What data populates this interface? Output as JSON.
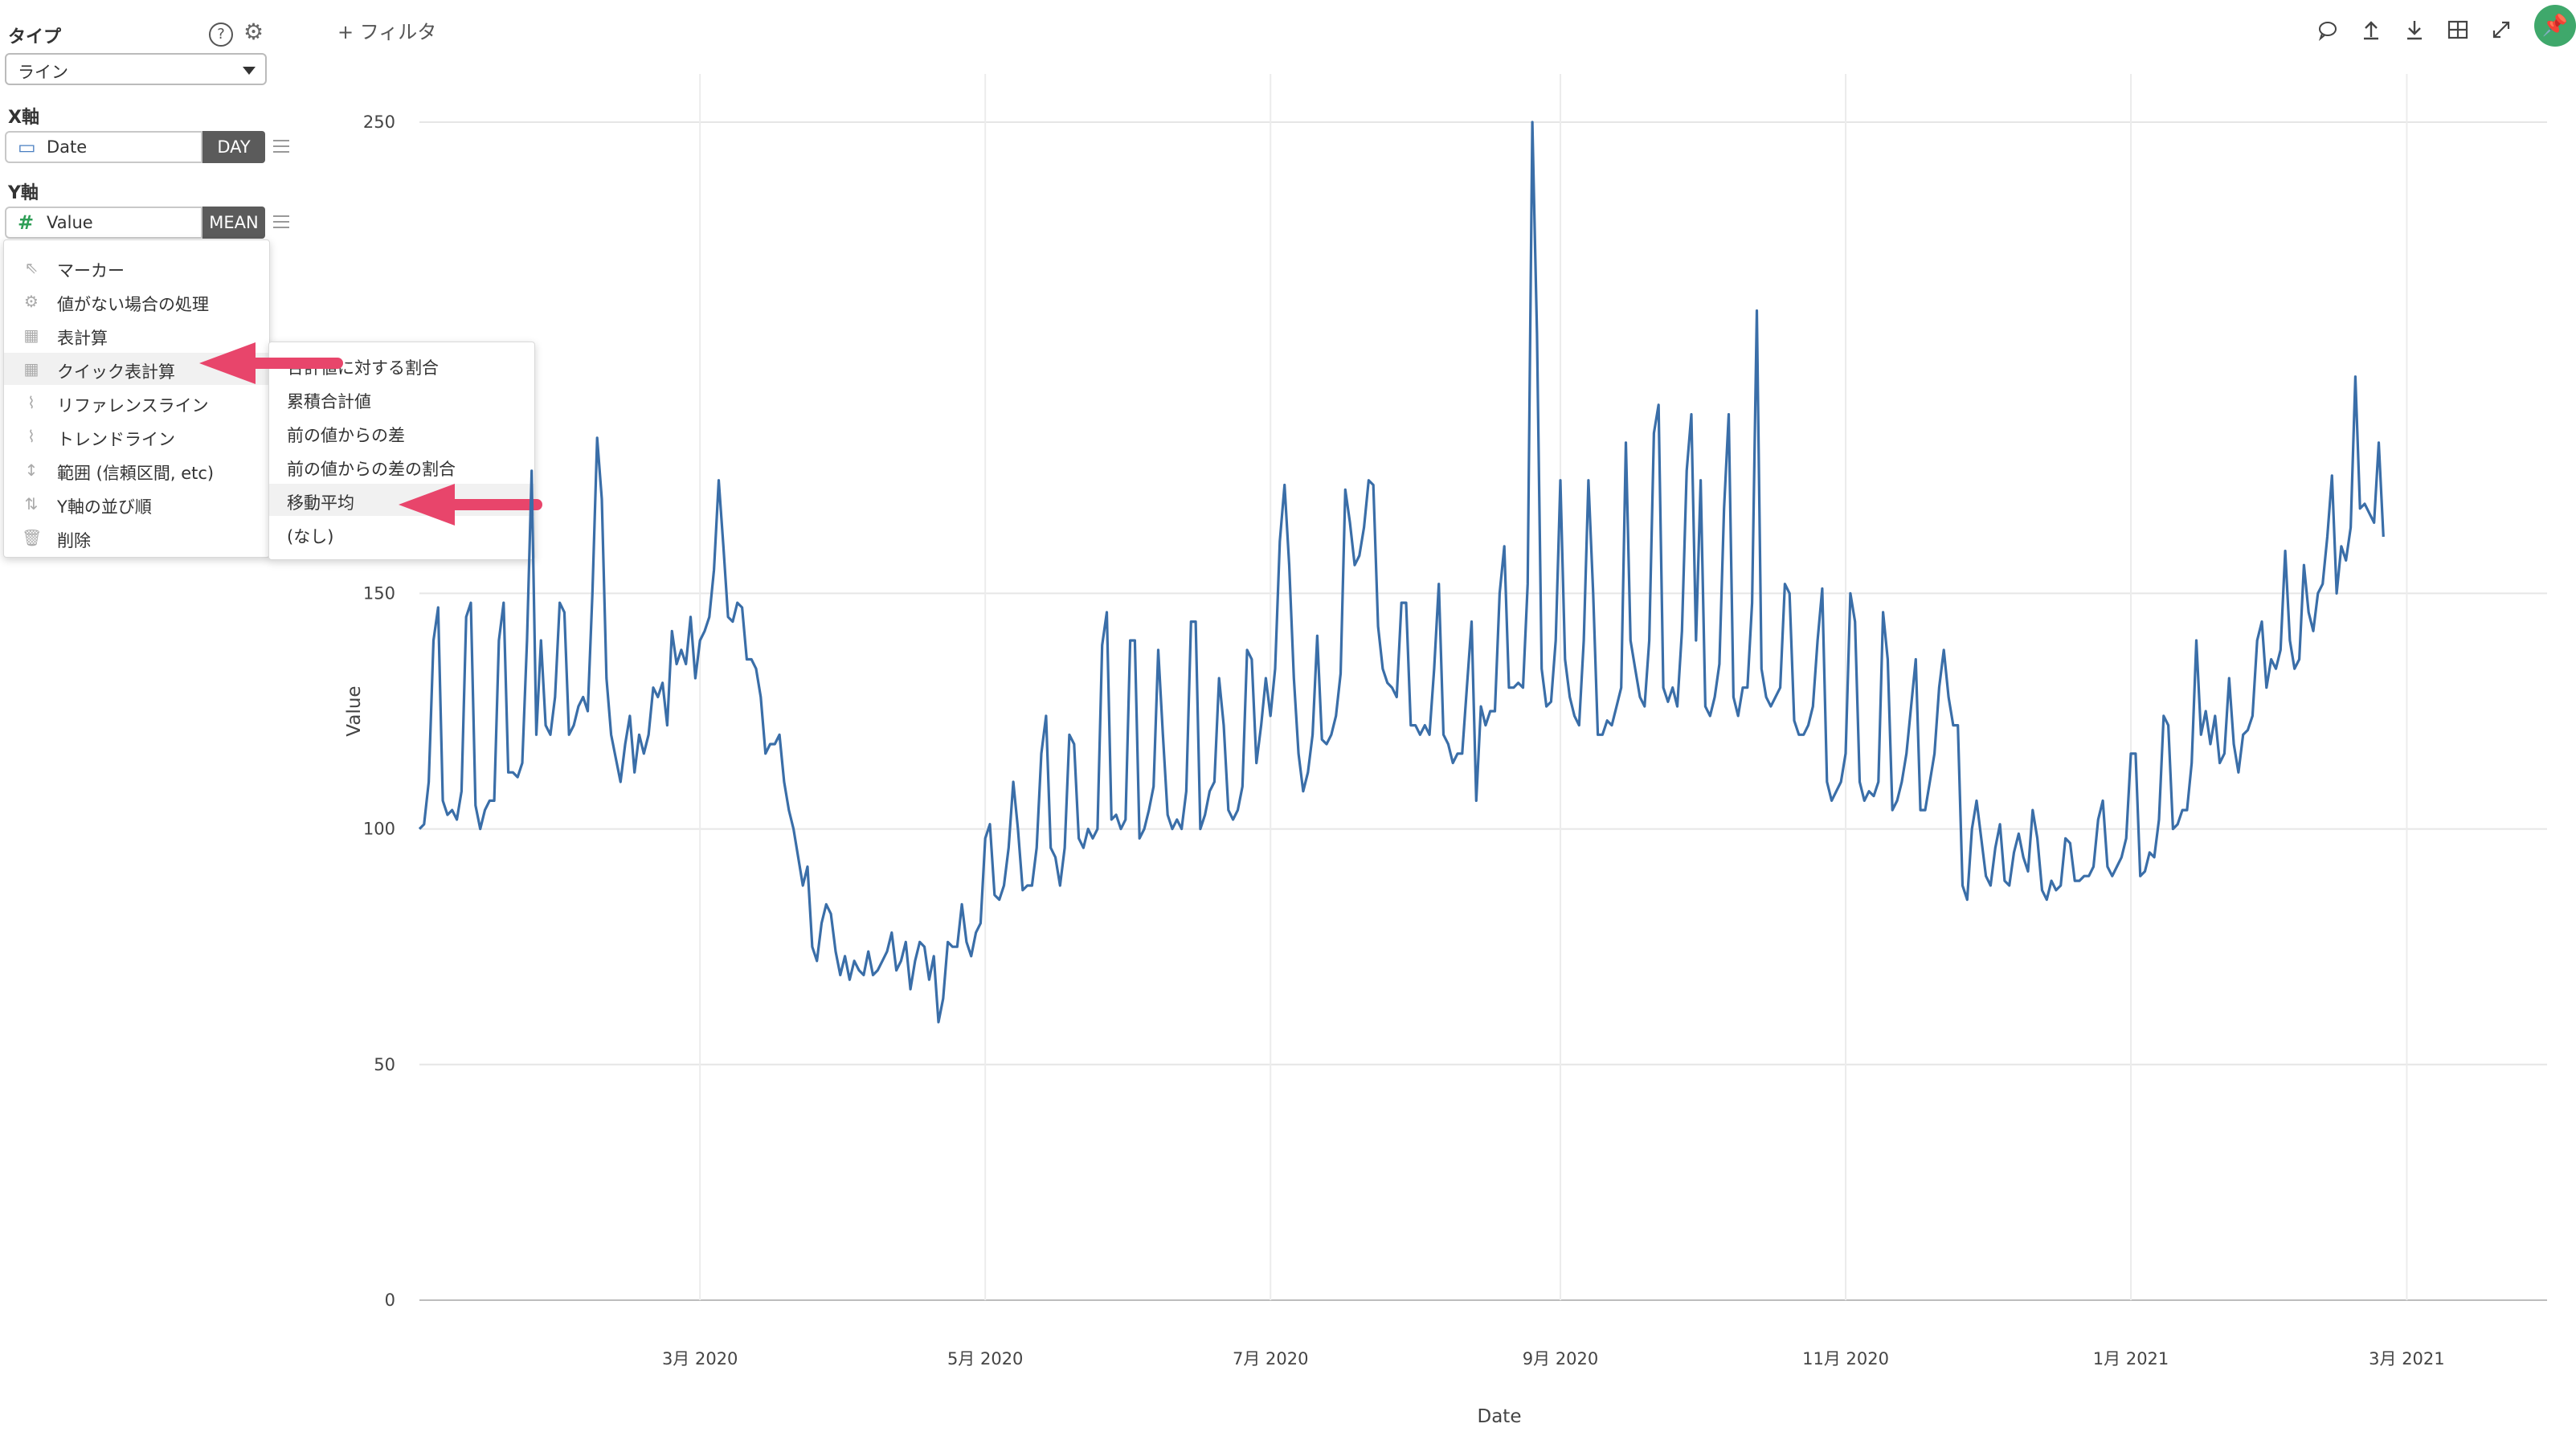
{
  "toolbar": {
    "filter_label": "+ フィルタ",
    "icons": [
      "comment-icon",
      "upload-icon",
      "download-icon",
      "table-icon",
      "expand-icon",
      "pin-icon"
    ]
  },
  "left_panel": {
    "type_section": {
      "title": "タイプ",
      "selected": "ライン"
    },
    "x_axis": {
      "title": "X軸",
      "field": "Date",
      "aggregation": "DAY"
    },
    "y_axis": {
      "title": "Y軸",
      "field": "Value",
      "aggregation": "MEAN"
    }
  },
  "context_menu": {
    "items": [
      {
        "icon": "cursor-icon",
        "label": "マーカー"
      },
      {
        "icon": "gear-icon",
        "label": "値がない場合の処理"
      },
      {
        "icon": "table-icon",
        "label": "表計算"
      },
      {
        "icon": "table-icon",
        "label": "クイック表計算"
      },
      {
        "icon": "reference-line-icon",
        "label": "リファレンスライン"
      },
      {
        "icon": "trend-line-icon",
        "label": "トレンドライン"
      },
      {
        "icon": "range-icon",
        "label": "範囲 (信頼区間, etc)"
      },
      {
        "icon": "sort-icon",
        "label": "Y軸の並び順"
      },
      {
        "icon": "trash-icon",
        "label": "削除"
      }
    ],
    "highlighted_index": 3
  },
  "submenu": {
    "items": [
      "合計値に対する割合",
      "累積合計値",
      "前の値からの差",
      "前の値からの差の割合",
      "移動平均",
      "(なし)"
    ],
    "highlighted_index": 4
  },
  "annotation_color": "#e8456b",
  "chart_data": {
    "type": "line",
    "title": "",
    "xlabel": "Date",
    "ylabel": "Value",
    "ylim": [
      0,
      250
    ],
    "yticks": [
      0,
      50,
      100,
      150,
      250
    ],
    "x_range": [
      "2020-01-01",
      "2021-03-31"
    ],
    "xticks": [
      {
        "date": "2020-03-01",
        "label": "3月 2020"
      },
      {
        "date": "2020-05-01",
        "label": "5月 2020"
      },
      {
        "date": "2020-07-01",
        "label": "7月 2020"
      },
      {
        "date": "2020-09-01",
        "label": "9月 2020"
      },
      {
        "date": "2020-11-01",
        "label": "11月 2020"
      },
      {
        "date": "2021-01-01",
        "label": "1月 2021"
      },
      {
        "date": "2021-03-01",
        "label": "3月 2021"
      }
    ],
    "grid": true,
    "line_color": "#3a6ea8",
    "series": [
      {
        "x_start": "2020-01-01",
        "interval": "day",
        "values": [
          100,
          101,
          110,
          140,
          147,
          106,
          103,
          104,
          102,
          108,
          145,
          148,
          105,
          100,
          104,
          106,
          106,
          140,
          148,
          112,
          112,
          111,
          114,
          140,
          176,
          120,
          140,
          122,
          120,
          128,
          148,
          146,
          120,
          122,
          126,
          128,
          125,
          150,
          183,
          170,
          132,
          120,
          115,
          110,
          118,
          124,
          112,
          120,
          116,
          120,
          130,
          128,
          131,
          122,
          142,
          135,
          138,
          135,
          145,
          132,
          140,
          142,
          145,
          155,
          174,
          160,
          145,
          144,
          148,
          147,
          136,
          136,
          134,
          128,
          116,
          118,
          118,
          120,
          110,
          104,
          100,
          94,
          88,
          92,
          75,
          72,
          80,
          84,
          82,
          74,
          69,
          73,
          68,
          72,
          70,
          69,
          74,
          69,
          70,
          72,
          74,
          78,
          70,
          72,
          76,
          66,
          72,
          76,
          75,
          68,
          73,
          59,
          64,
          76,
          75,
          75,
          84,
          76,
          73,
          78,
          80,
          98,
          101,
          86,
          85,
          88,
          96,
          110,
          100,
          87,
          88,
          88,
          96,
          116,
          124,
          96,
          94,
          88,
          96,
          120,
          118,
          98,
          96,
          100,
          98,
          100,
          139,
          146,
          102,
          103,
          100,
          102,
          140,
          140,
          98,
          100,
          104,
          109,
          138,
          120,
          103,
          100,
          102,
          100,
          108,
          144,
          144,
          100,
          103,
          108,
          110,
          132,
          122,
          104,
          102,
          104,
          109,
          138,
          136,
          114,
          122,
          132,
          124,
          134,
          161,
          173,
          156,
          132,
          116,
          108,
          112,
          120,
          141,
          119,
          118,
          120,
          124,
          133,
          172,
          165,
          156,
          158,
          164,
          174,
          173,
          143,
          134,
          131,
          130,
          128,
          148,
          148,
          122,
          122,
          120,
          122,
          120,
          134,
          152,
          120,
          118,
          114,
          116,
          116,
          130,
          144,
          106,
          126,
          122,
          125,
          125,
          150,
          160,
          130,
          130,
          131,
          130,
          152,
          250,
          205,
          134,
          126,
          127,
          140,
          174,
          136,
          128,
          124,
          122,
          140,
          174,
          150,
          120,
          120,
          123,
          122,
          126,
          130,
          182,
          140,
          134,
          128,
          126,
          140,
          184,
          190,
          130,
          127,
          130,
          126,
          142,
          176,
          188,
          140,
          174,
          126,
          124,
          128,
          135,
          168,
          188,
          128,
          124,
          130,
          130,
          148,
          210,
          134,
          128,
          126,
          128,
          130,
          152,
          150,
          123,
          120,
          120,
          122,
          126,
          140,
          151,
          110,
          106,
          108,
          110,
          116,
          150,
          144,
          110,
          106,
          108,
          107,
          110,
          146,
          136,
          104,
          106,
          110,
          116,
          126,
          136,
          104,
          104,
          110,
          116,
          130,
          138,
          128,
          122,
          122,
          88,
          85,
          100,
          106,
          98,
          90,
          88,
          96,
          101,
          89,
          88,
          95,
          99,
          94,
          91,
          104,
          98,
          87,
          85,
          89,
          87,
          88,
          98,
          97,
          89,
          89,
          90,
          90,
          92,
          102,
          106,
          92,
          90,
          92,
          94,
          98,
          116,
          116,
          90,
          91,
          95,
          94,
          102,
          124,
          122,
          100,
          101,
          104,
          104,
          114,
          140,
          120,
          125,
          118,
          124,
          114,
          116,
          132,
          118,
          112,
          120,
          121,
          124,
          140,
          144,
          130,
          136,
          134,
          138,
          159,
          140,
          134,
          136,
          156,
          146,
          142,
          150,
          152,
          162,
          175,
          150,
          160,
          157,
          164,
          196,
          168,
          169,
          167,
          165,
          182,
          162
        ]
      }
    ]
  }
}
